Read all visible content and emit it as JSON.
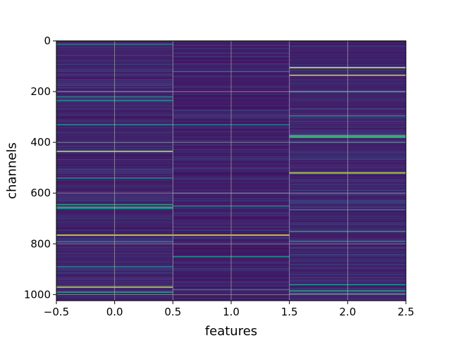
{
  "chart_data": {
    "type": "heatmap",
    "title": "",
    "xlabel": "features",
    "ylabel": "channels",
    "xlim": [
      -0.5,
      2.5
    ],
    "ylim": [
      1024,
      0
    ],
    "y_inverted": true,
    "grid": true,
    "colormap": "viridis",
    "n_channels": 1024,
    "n_features": 3,
    "xticks": [
      "-0.5",
      "0.0",
      "0.5",
      "1.0",
      "1.5",
      "2.0",
      "2.5"
    ],
    "xtick_values": [
      -0.5,
      0.0,
      0.5,
      1.0,
      1.5,
      2.0,
      2.5
    ],
    "yticks": [
      "0",
      "200",
      "400",
      "600",
      "800",
      "1000"
    ],
    "ytick_values": [
      0,
      200,
      400,
      600,
      800,
      1000
    ],
    "columns": [
      {
        "feature": 0,
        "base_value": 0.1,
        "highlights": [
          {
            "channel": 14,
            "value": 0.35
          },
          {
            "channel": 220,
            "value": 0.4
          },
          {
            "channel": 235,
            "value": 0.45
          },
          {
            "channel": 330,
            "value": 0.45
          },
          {
            "channel": 435,
            "value": 0.9
          },
          {
            "channel": 540,
            "value": 0.45
          },
          {
            "channel": 645,
            "value": 0.55
          },
          {
            "channel": 655,
            "value": 0.6
          },
          {
            "channel": 660,
            "value": 0.5
          },
          {
            "channel": 765,
            "value": 0.95
          },
          {
            "channel": 790,
            "value": 0.45
          },
          {
            "channel": 890,
            "value": 0.4
          },
          {
            "channel": 970,
            "value": 0.9
          },
          {
            "channel": 990,
            "value": 0.55
          }
        ]
      },
      {
        "feature": 1,
        "base_value": 0.08,
        "highlights": [
          {
            "channel": 120,
            "value": 0.35
          },
          {
            "channel": 330,
            "value": 0.4
          },
          {
            "channel": 650,
            "value": 0.4
          },
          {
            "channel": 765,
            "value": 0.95
          },
          {
            "channel": 850,
            "value": 0.5
          },
          {
            "channel": 980,
            "value": 0.4
          }
        ]
      },
      {
        "feature": 2,
        "base_value": 0.1,
        "highlights": [
          {
            "channel": 105,
            "value": 0.95
          },
          {
            "channel": 135,
            "value": 0.9
          },
          {
            "channel": 200,
            "value": 0.45
          },
          {
            "channel": 295,
            "value": 0.5
          },
          {
            "channel": 372,
            "value": 0.6
          },
          {
            "channel": 376,
            "value": 0.62
          },
          {
            "channel": 380,
            "value": 0.6
          },
          {
            "channel": 520,
            "value": 0.92
          },
          {
            "channel": 665,
            "value": 0.4
          },
          {
            "channel": 750,
            "value": 0.55
          },
          {
            "channel": 790,
            "value": 0.45
          },
          {
            "channel": 960,
            "value": 0.5
          },
          {
            "channel": 985,
            "value": 0.55
          },
          {
            "channel": 995,
            "value": 0.5
          }
        ]
      }
    ]
  }
}
